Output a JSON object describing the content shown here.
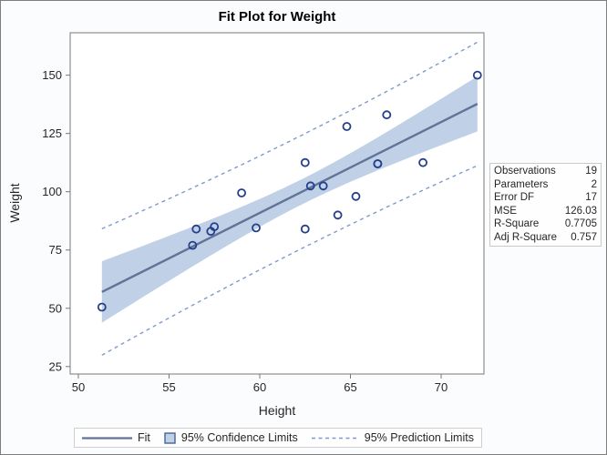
{
  "title": "Fit Plot for Weight",
  "axes": {
    "x_label": "Height",
    "y_label": "Weight",
    "x_ticks": [
      50,
      55,
      60,
      65,
      70
    ],
    "y_ticks": [
      25,
      50,
      75,
      100,
      125,
      150
    ]
  },
  "stats": {
    "rows": [
      {
        "label": "Observations",
        "value": "19"
      },
      {
        "label": "Parameters",
        "value": "2"
      },
      {
        "label": "Error DF",
        "value": "17"
      },
      {
        "label": "MSE",
        "value": "126.03"
      },
      {
        "label": "R-Square",
        "value": "0.7705"
      },
      {
        "label": "Adj R-Square",
        "value": "0.757"
      }
    ]
  },
  "legend": {
    "items": [
      {
        "label": "Fit",
        "swatch": "solid-line"
      },
      {
        "label": "95% Confidence Limits",
        "swatch": "filled-box"
      },
      {
        "label": "95% Prediction Limits",
        "swatch": "dashed-line"
      }
    ]
  },
  "colors": {
    "fit_line": "#617396",
    "confidence_fill": "#c0d1e7",
    "prediction_line": "#8099cc",
    "marker": "#24408a",
    "swatch_border": "#44649c",
    "frame": "#8f8f8f",
    "tick": "#777777",
    "background": "#fbfcfe",
    "figure_border": "#7e7e7e",
    "box_border": "#c9c9c9",
    "text": "#262626"
  },
  "chart_data": {
    "type": "scatter",
    "title": "Fit Plot for Weight",
    "xlabel": "Height",
    "ylabel": "Weight",
    "x_range": [
      49.55,
      72.36
    ],
    "y_range": [
      21.8,
      168.2
    ],
    "x_ticks": [
      50,
      55,
      60,
      65,
      70
    ],
    "y_ticks": [
      25,
      50,
      75,
      100,
      125,
      150
    ],
    "grid": false,
    "legend_position": "bottom",
    "points": [
      [
        69.0,
        112.5
      ],
      [
        56.5,
        84.0
      ],
      [
        65.3,
        98.0
      ],
      [
        62.8,
        102.5
      ],
      [
        63.5,
        102.5
      ],
      [
        57.3,
        83.0
      ],
      [
        59.8,
        84.5
      ],
      [
        62.5,
        112.5
      ],
      [
        62.5,
        84.0
      ],
      [
        59.0,
        99.5
      ],
      [
        51.3,
        50.5
      ],
      [
        64.3,
        90.0
      ],
      [
        56.3,
        77.0
      ],
      [
        66.5,
        112.0
      ],
      [
        72.0,
        150.0
      ],
      [
        64.8,
        128.0
      ],
      [
        67.0,
        133.0
      ],
      [
        57.5,
        85.0
      ],
      [
        66.5,
        112.0
      ]
    ],
    "fit": {
      "intercept": -143.0269,
      "slope": 3.899,
      "x_min": 51.3,
      "x_max": 72.0
    },
    "interval": {
      "n": 19,
      "mean_x": 62.3368,
      "sxx": 473.16,
      "mse": 126.03,
      "t_crit": 2.1098,
      "level": "95%"
    },
    "series_labels": [
      "Fit",
      "95% Confidence Limits",
      "95% Prediction Limits"
    ],
    "stats": {
      "Observations": 19,
      "Parameters": 2,
      "Error DF": 17,
      "MSE": 126.03,
      "R-Square": 0.7705,
      "Adj R-Square": 0.757
    }
  }
}
